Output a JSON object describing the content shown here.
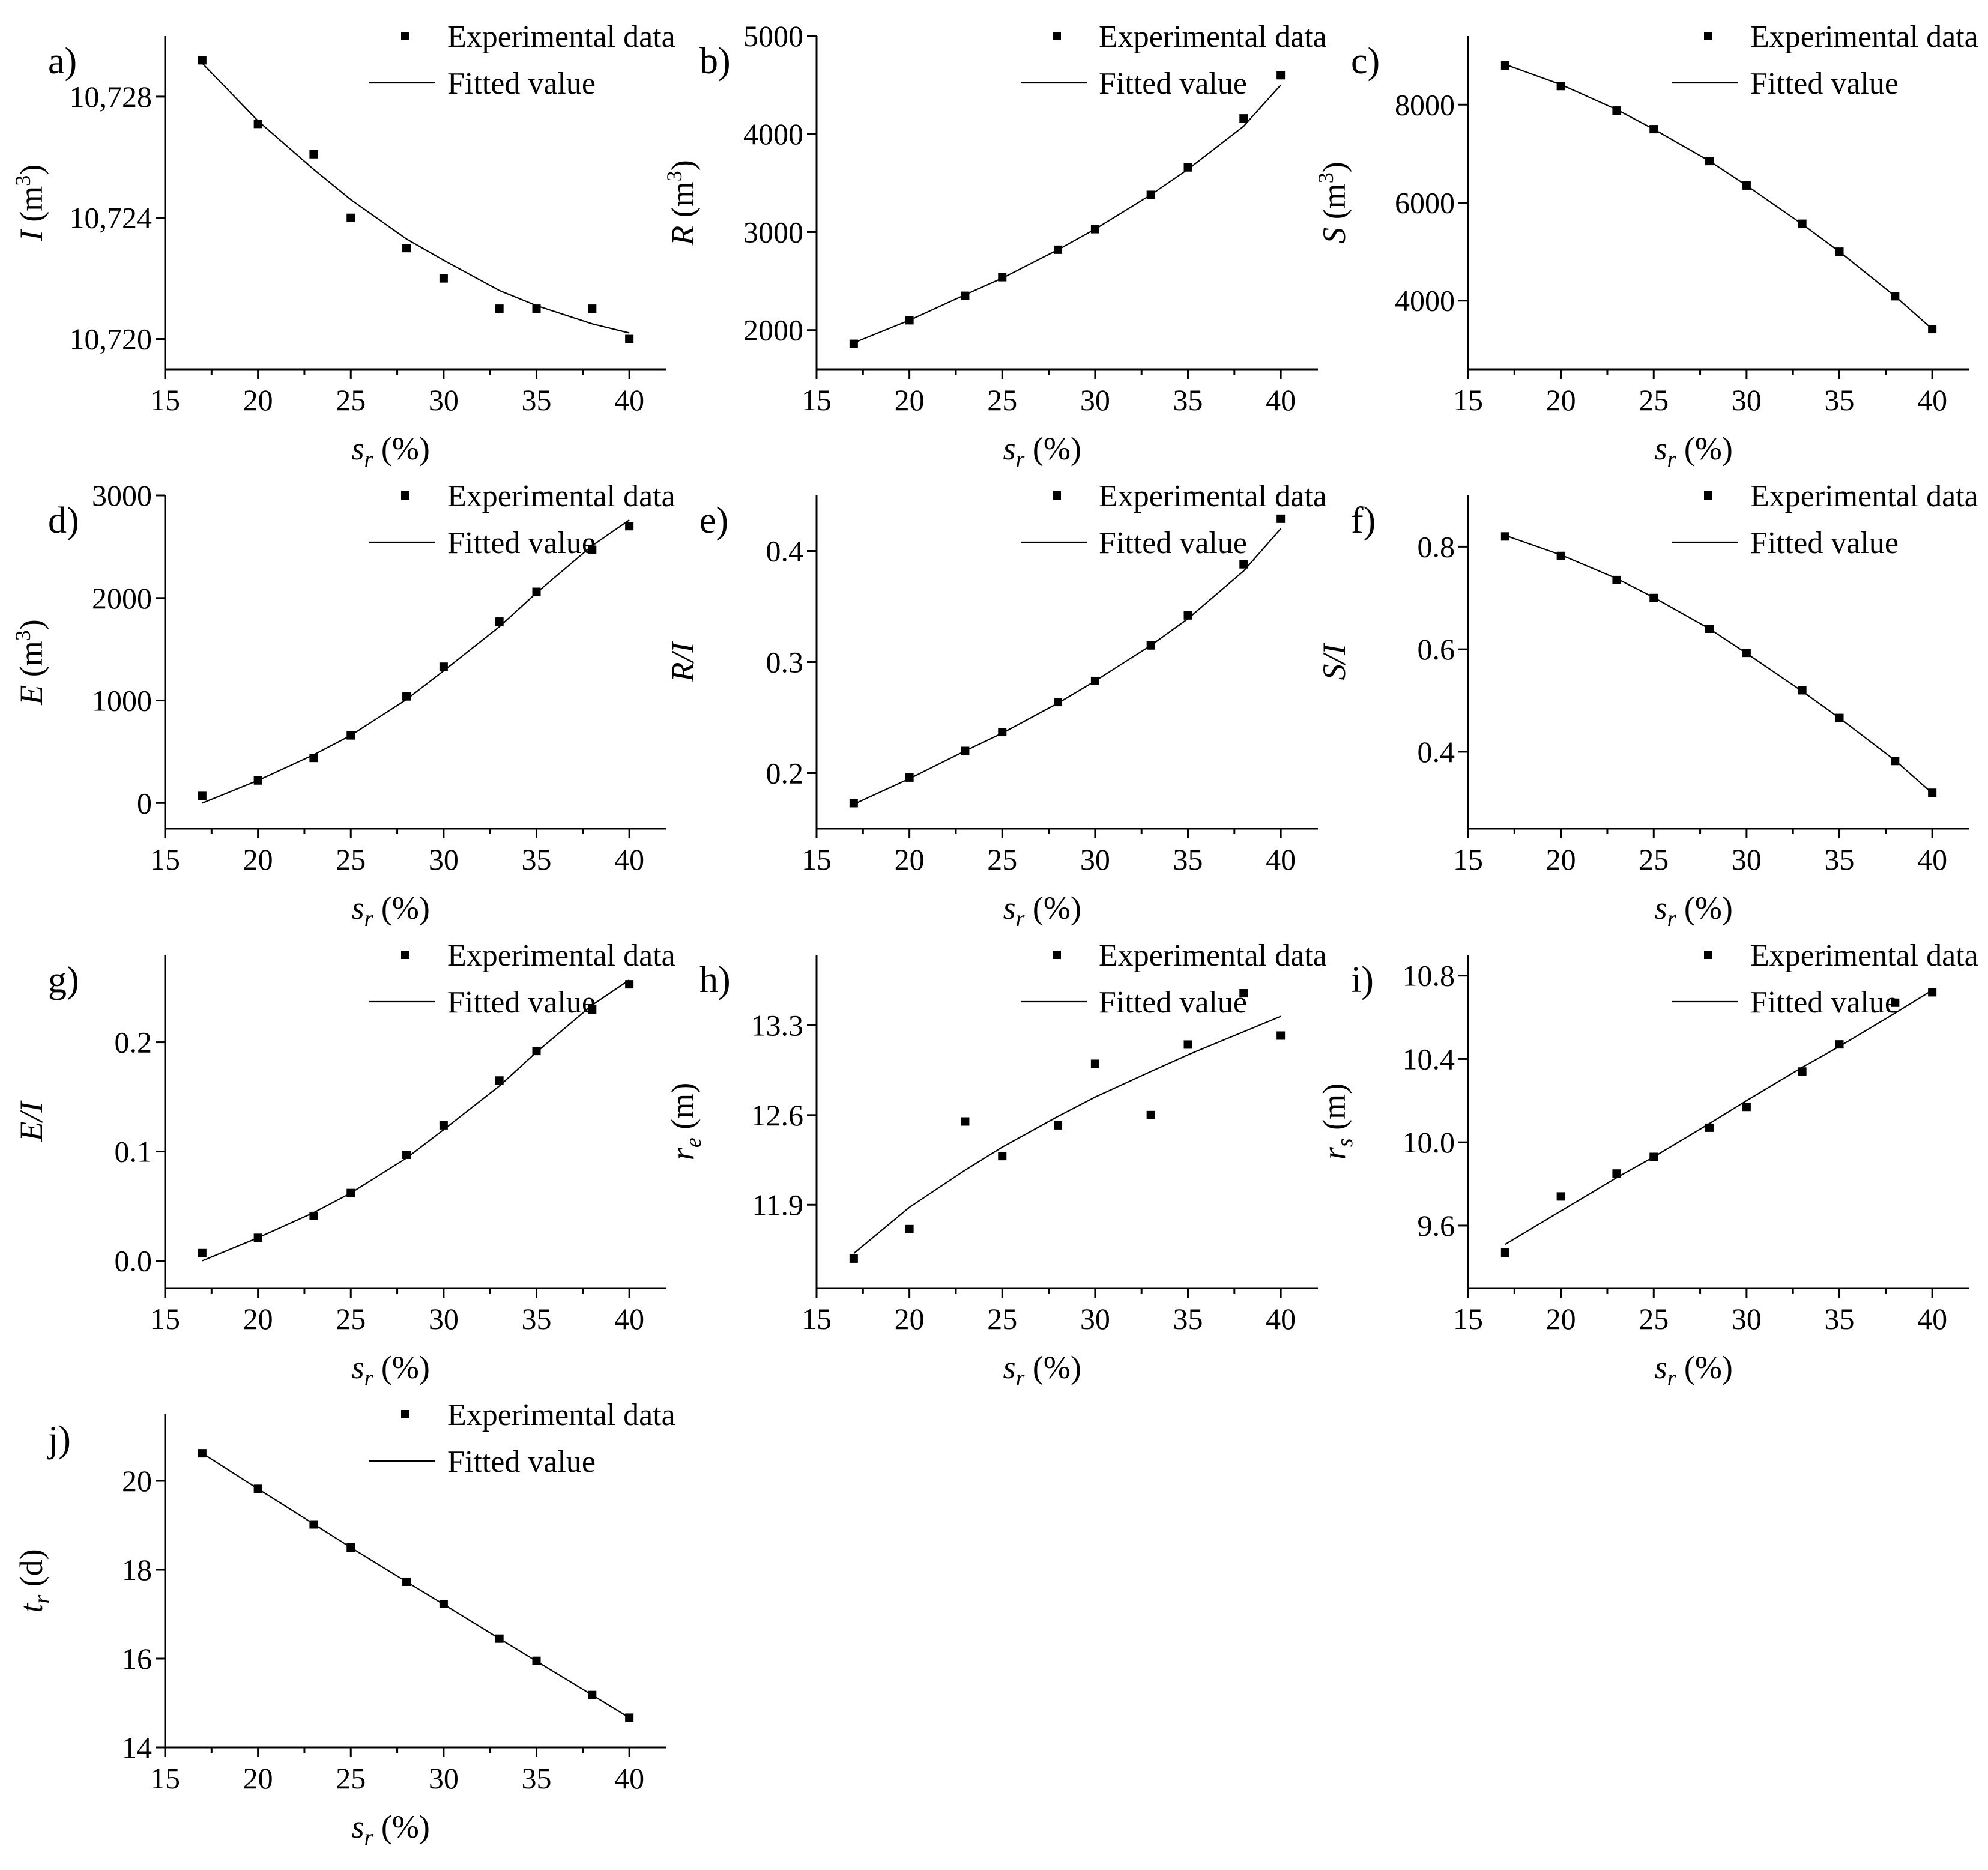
{
  "chart_data": [
    {
      "type": "scatter",
      "panel_label": "a)",
      "ylabel_var": "I",
      "ylabel_unit": " (m",
      "ylabel_sup": "3",
      "ylabel_close": ")",
      "xlabel_var": "s",
      "xlabel_sub": "r",
      "xlabel_unit": " (%)",
      "xlim": [
        15,
        42
      ],
      "ylim": [
        10719.0,
        10730.0
      ],
      "xticks": [
        15,
        20,
        25,
        30,
        35,
        40
      ],
      "yticks": [
        10720,
        10724,
        10728
      ],
      "ytick_labels": [
        "10,720",
        "10,724",
        "10,728"
      ],
      "legend": {
        "placement": "top-right",
        "entries": [
          "Experimental data",
          "Fitted value"
        ]
      },
      "series": [
        {
          "name": "Experimental data",
          "kind": "points",
          "x": [
            17,
            20,
            23,
            25,
            28,
            30,
            33,
            35,
            38,
            40
          ],
          "y": [
            10729.2,
            10727.1,
            10726.1,
            10724.0,
            10723.0,
            10722.0,
            10721.0,
            10721.0,
            10721.0,
            10720.0
          ]
        },
        {
          "name": "Fitted value",
          "kind": "line",
          "x": [
            17,
            20,
            23,
            25,
            28,
            30,
            33,
            35,
            38,
            40
          ],
          "y": [
            10729.1,
            10727.2,
            10725.6,
            10724.6,
            10723.3,
            10722.6,
            10721.6,
            10721.1,
            10720.5,
            10720.2
          ]
        }
      ]
    },
    {
      "type": "scatter",
      "panel_label": "b)",
      "ylabel_var": "R",
      "ylabel_unit": " (m",
      "ylabel_sup": "3",
      "ylabel_close": ")",
      "xlabel_var": "s",
      "xlabel_sub": "r",
      "xlabel_unit": " (%)",
      "xlim": [
        15,
        42
      ],
      "ylim": [
        1600,
        5000
      ],
      "xticks": [
        15,
        20,
        25,
        30,
        35,
        40
      ],
      "yticks": [
        2000,
        3000,
        4000,
        5000
      ],
      "ytick_labels": [
        "2000",
        "3000",
        "4000",
        "5000"
      ],
      "legend": {
        "placement": "top-right",
        "entries": [
          "Experimental data",
          "Fitted value"
        ]
      },
      "series": [
        {
          "name": "Experimental data",
          "kind": "points",
          "x": [
            17,
            20,
            23,
            25,
            28,
            30,
            33,
            35,
            38,
            40
          ],
          "y": [
            1860,
            2100,
            2350,
            2540,
            2820,
            3030,
            3380,
            3660,
            4160,
            4600
          ]
        },
        {
          "name": "Fitted value",
          "kind": "line",
          "x": [
            17,
            20,
            23,
            25,
            28,
            30,
            33,
            35,
            38,
            40
          ],
          "y": [
            1870,
            2100,
            2360,
            2530,
            2820,
            3030,
            3380,
            3640,
            4080,
            4500
          ]
        }
      ]
    },
    {
      "type": "scatter",
      "panel_label": "c)",
      "ylabel_var": "S",
      "ylabel_unit": " (m",
      "ylabel_sup": "3",
      "ylabel_close": ")",
      "xlabel_var": "s",
      "xlabel_sub": "r",
      "xlabel_unit": " (%)",
      "xlim": [
        15,
        42
      ],
      "ylim": [
        2600,
        9400
      ],
      "xticks": [
        15,
        20,
        25,
        30,
        35,
        40
      ],
      "yticks": [
        4000,
        6000,
        8000
      ],
      "ytick_labels": [
        "4000",
        "6000",
        "8000"
      ],
      "legend": {
        "placement": "top-right",
        "entries": [
          "Experimental data",
          "Fitted value"
        ]
      },
      "series": [
        {
          "name": "Experimental data",
          "kind": "points",
          "x": [
            17,
            20,
            23,
            25,
            28,
            30,
            33,
            35,
            38,
            40
          ],
          "y": [
            8800,
            8380,
            7880,
            7500,
            6850,
            6350,
            5570,
            5000,
            4090,
            3420
          ]
        },
        {
          "name": "Fitted value",
          "kind": "line",
          "x": [
            17,
            20,
            23,
            25,
            28,
            30,
            33,
            35,
            38,
            40
          ],
          "y": [
            8820,
            8410,
            7900,
            7500,
            6850,
            6350,
            5560,
            5000,
            4090,
            3420
          ]
        }
      ]
    },
    {
      "type": "scatter",
      "panel_label": "d)",
      "ylabel_var": "E",
      "ylabel_unit": " (m",
      "ylabel_sup": "3",
      "ylabel_close": ")",
      "xlabel_var": "s",
      "xlabel_sub": "r",
      "xlabel_unit": " (%)",
      "xlim": [
        15,
        42
      ],
      "ylim": [
        -250,
        3000
      ],
      "xticks": [
        15,
        20,
        25,
        30,
        35,
        40
      ],
      "yticks": [
        0,
        1000,
        2000,
        3000
      ],
      "ytick_labels": [
        "0",
        "1000",
        "2000",
        "3000"
      ],
      "legend": {
        "placement": "top-right",
        "entries": [
          "Experimental data",
          "Fitted value"
        ]
      },
      "series": [
        {
          "name": "Experimental data",
          "kind": "points",
          "x": [
            17,
            20,
            23,
            25,
            28,
            30,
            33,
            35,
            38,
            40
          ],
          "y": [
            70,
            220,
            440,
            660,
            1040,
            1330,
            1770,
            2060,
            2470,
            2700
          ]
        },
        {
          "name": "Fitted value",
          "kind": "line",
          "x": [
            17,
            20,
            23,
            25,
            28,
            30,
            33,
            35,
            38,
            40
          ],
          "y": [
            0,
            220,
            470,
            660,
            1010,
            1290,
            1720,
            2050,
            2510,
            2760
          ]
        }
      ]
    },
    {
      "type": "scatter",
      "panel_label": "e)",
      "ylabel_var": "R/I",
      "ylabel_unit": "",
      "ylabel_sup": "",
      "ylabel_close": "",
      "xlabel_var": "s",
      "xlabel_sub": "r",
      "xlabel_unit": " (%)",
      "xlim": [
        15,
        42
      ],
      "ylim": [
        0.15,
        0.45
      ],
      "xticks": [
        15,
        20,
        25,
        30,
        35,
        40
      ],
      "yticks": [
        0.2,
        0.3,
        0.4
      ],
      "ytick_labels": [
        "0.2",
        "0.3",
        "0.4"
      ],
      "legend": {
        "placement": "top-right",
        "entries": [
          "Experimental data",
          "Fitted value"
        ]
      },
      "series": [
        {
          "name": "Experimental data",
          "kind": "points",
          "x": [
            17,
            20,
            23,
            25,
            28,
            30,
            33,
            35,
            38,
            40
          ],
          "y": [
            0.173,
            0.196,
            0.22,
            0.237,
            0.264,
            0.283,
            0.315,
            0.342,
            0.388,
            0.429
          ]
        },
        {
          "name": "Fitted value",
          "kind": "line",
          "x": [
            17,
            20,
            23,
            25,
            28,
            30,
            33,
            35,
            38,
            40
          ],
          "y": [
            0.172,
            0.195,
            0.22,
            0.236,
            0.263,
            0.283,
            0.315,
            0.339,
            0.382,
            0.42
          ]
        }
      ]
    },
    {
      "type": "scatter",
      "panel_label": "f)",
      "ylabel_var": "S/I",
      "ylabel_unit": "",
      "ylabel_sup": "",
      "ylabel_close": "",
      "xlabel_var": "s",
      "xlabel_sub": "r",
      "xlabel_unit": " (%)",
      "xlim": [
        15,
        42
      ],
      "ylim": [
        0.25,
        0.9
      ],
      "xticks": [
        15,
        20,
        25,
        30,
        35,
        40
      ],
      "yticks": [
        0.4,
        0.6,
        0.8
      ],
      "ytick_labels": [
        "0.4",
        "0.6",
        "0.8"
      ],
      "legend": {
        "placement": "top-right",
        "entries": [
          "Experimental data",
          "Fitted value"
        ]
      },
      "series": [
        {
          "name": "Experimental data",
          "kind": "points",
          "x": [
            17,
            20,
            23,
            25,
            28,
            30,
            33,
            35,
            38,
            40
          ],
          "y": [
            0.82,
            0.782,
            0.735,
            0.7,
            0.64,
            0.593,
            0.52,
            0.466,
            0.382,
            0.32
          ]
        },
        {
          "name": "Fitted value",
          "kind": "line",
          "x": [
            17,
            20,
            23,
            25,
            28,
            30,
            33,
            35,
            38,
            40
          ],
          "y": [
            0.822,
            0.784,
            0.738,
            0.701,
            0.64,
            0.592,
            0.518,
            0.466,
            0.383,
            0.319
          ]
        }
      ]
    },
    {
      "type": "scatter",
      "panel_label": "g)",
      "ylabel_var": "E/I",
      "ylabel_unit": "",
      "ylabel_sup": "",
      "ylabel_close": "",
      "xlabel_var": "s",
      "xlabel_sub": "r",
      "xlabel_unit": " (%)",
      "xlim": [
        15,
        42
      ],
      "ylim": [
        -0.025,
        0.28
      ],
      "xticks": [
        15,
        20,
        25,
        30,
        35,
        40
      ],
      "yticks": [
        0.0,
        0.1,
        0.2
      ],
      "ytick_labels": [
        "0.0",
        "0.1",
        "0.2"
      ],
      "legend": {
        "placement": "top-right",
        "entries": [
          "Experimental data",
          "Fitted value"
        ]
      },
      "series": [
        {
          "name": "Experimental data",
          "kind": "points",
          "x": [
            17,
            20,
            23,
            25,
            28,
            30,
            33,
            35,
            38,
            40
          ],
          "y": [
            0.007,
            0.021,
            0.041,
            0.062,
            0.097,
            0.124,
            0.165,
            0.192,
            0.23,
            0.253
          ]
        },
        {
          "name": "Fitted value",
          "kind": "line",
          "x": [
            17,
            20,
            23,
            25,
            28,
            30,
            33,
            35,
            38,
            40
          ],
          "y": [
            0.0,
            0.021,
            0.044,
            0.062,
            0.094,
            0.12,
            0.16,
            0.191,
            0.234,
            0.257
          ]
        }
      ]
    },
    {
      "type": "scatter",
      "panel_label": "h)",
      "ylabel_var": "r",
      "ylabel_sub": "e",
      "ylabel_unit": " (m)",
      "ylabel_sup": "",
      "ylabel_close": "",
      "xlabel_var": "s",
      "xlabel_sub": "r",
      "xlabel_unit": " (%)",
      "xlim": [
        15,
        42
      ],
      "ylim": [
        11.25,
        13.85
      ],
      "xticks": [
        15,
        20,
        25,
        30,
        35,
        40
      ],
      "yticks": [
        11.9,
        12.6,
        13.3
      ],
      "ytick_labels": [
        "11.9",
        "12.6",
        "13.3"
      ],
      "legend": {
        "placement": "top-right",
        "entries": [
          "Experimental data",
          "Fitted value"
        ]
      },
      "series": [
        {
          "name": "Experimental data",
          "kind": "points",
          "x": [
            17,
            20,
            23,
            25,
            28,
            30,
            33,
            35,
            38,
            40
          ],
          "y": [
            11.48,
            11.71,
            12.55,
            12.28,
            12.52,
            13.0,
            12.6,
            13.15,
            13.55,
            13.22
          ]
        },
        {
          "name": "Fitted value",
          "kind": "line",
          "x": [
            17,
            20,
            23,
            25,
            28,
            30,
            33,
            35,
            38,
            40
          ],
          "y": [
            11.52,
            11.88,
            12.17,
            12.35,
            12.59,
            12.74,
            12.94,
            13.07,
            13.25,
            13.37
          ]
        }
      ]
    },
    {
      "type": "scatter",
      "panel_label": "i)",
      "ylabel_var": "r",
      "ylabel_sub": "s",
      "ylabel_unit": " (m)",
      "ylabel_sup": "",
      "ylabel_close": "",
      "xlabel_var": "s",
      "xlabel_sub": "r",
      "xlabel_unit": " (%)",
      "xlim": [
        15,
        42
      ],
      "ylim": [
        9.3,
        10.9
      ],
      "xticks": [
        15,
        20,
        25,
        30,
        35,
        40
      ],
      "yticks": [
        9.6,
        10.0,
        10.4,
        10.8
      ],
      "ytick_labels": [
        "9.6",
        "10.0",
        "10.4",
        "10.8"
      ],
      "legend": {
        "placement": "top-right",
        "entries": [
          "Experimental data",
          "Fitted value"
        ]
      },
      "series": [
        {
          "name": "Experimental data",
          "kind": "points",
          "x": [
            17,
            20,
            23,
            25,
            28,
            30,
            33,
            35,
            38,
            40
          ],
          "y": [
            9.47,
            9.74,
            9.85,
            9.93,
            10.07,
            10.17,
            10.34,
            10.47,
            10.67,
            10.72
          ]
        },
        {
          "name": "Fitted value",
          "kind": "line",
          "x": [
            17,
            20,
            23,
            25,
            28,
            30,
            33,
            35,
            38,
            40
          ],
          "y": [
            9.51,
            9.67,
            9.83,
            9.93,
            10.09,
            10.2,
            10.36,
            10.46,
            10.62,
            10.73
          ]
        }
      ]
    },
    {
      "type": "scatter",
      "panel_label": "j)",
      "ylabel_var": "t",
      "ylabel_sub": "r",
      "ylabel_unit": " (d)",
      "ylabel_sup": "",
      "ylabel_close": "",
      "xlabel_var": "s",
      "xlabel_sub": "r",
      "xlabel_unit": " (%)",
      "xlim": [
        15,
        42
      ],
      "ylim": [
        14.0,
        21.5
      ],
      "xticks": [
        15,
        20,
        25,
        30,
        35,
        40
      ],
      "yticks": [
        14,
        16,
        18,
        20
      ],
      "ytick_labels": [
        "14",
        "16",
        "18",
        "20"
      ],
      "legend": {
        "placement": "top-right",
        "entries": [
          "Experimental data",
          "Fitted value"
        ]
      },
      "series": [
        {
          "name": "Experimental data",
          "kind": "points",
          "x": [
            17,
            20,
            23,
            25,
            28,
            30,
            33,
            35,
            38,
            40
          ],
          "y": [
            20.62,
            19.82,
            19.02,
            18.5,
            17.73,
            17.23,
            16.45,
            15.95,
            15.18,
            14.67
          ]
        },
        {
          "name": "Fitted value",
          "kind": "line",
          "x": [
            17,
            20,
            23,
            25,
            28,
            30,
            33,
            35,
            38,
            40
          ],
          "y": [
            20.62,
            19.82,
            19.03,
            18.5,
            17.73,
            17.22,
            16.45,
            15.94,
            15.18,
            14.67
          ]
        }
      ]
    }
  ]
}
